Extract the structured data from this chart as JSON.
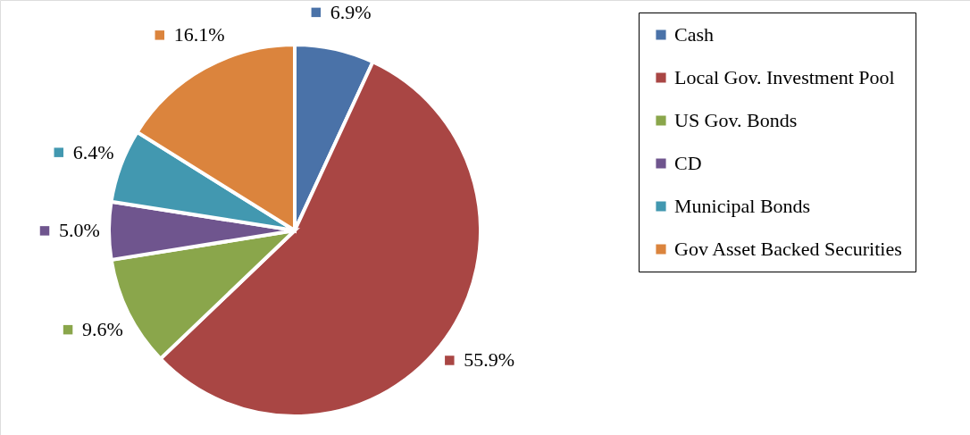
{
  "chart_data": {
    "type": "pie",
    "categories": [
      "Cash",
      "Local Gov. Investment Pool",
      "US Gov. Bonds",
      "CD",
      "Municipal Bonds",
      "Gov Asset Backed Securities"
    ],
    "values": [
      6.9,
      55.9,
      9.6,
      5.0,
      6.4,
      16.1
    ],
    "colors": [
      "#4a72a8",
      "#a94644",
      "#8aa64b",
      "#6f558e",
      "#4298b0",
      "#db843d"
    ],
    "value_labels": [
      "6.9%",
      "55.9%",
      "9.6%",
      "5.0%",
      "6.4%",
      "16.1%"
    ],
    "legend": "right"
  }
}
